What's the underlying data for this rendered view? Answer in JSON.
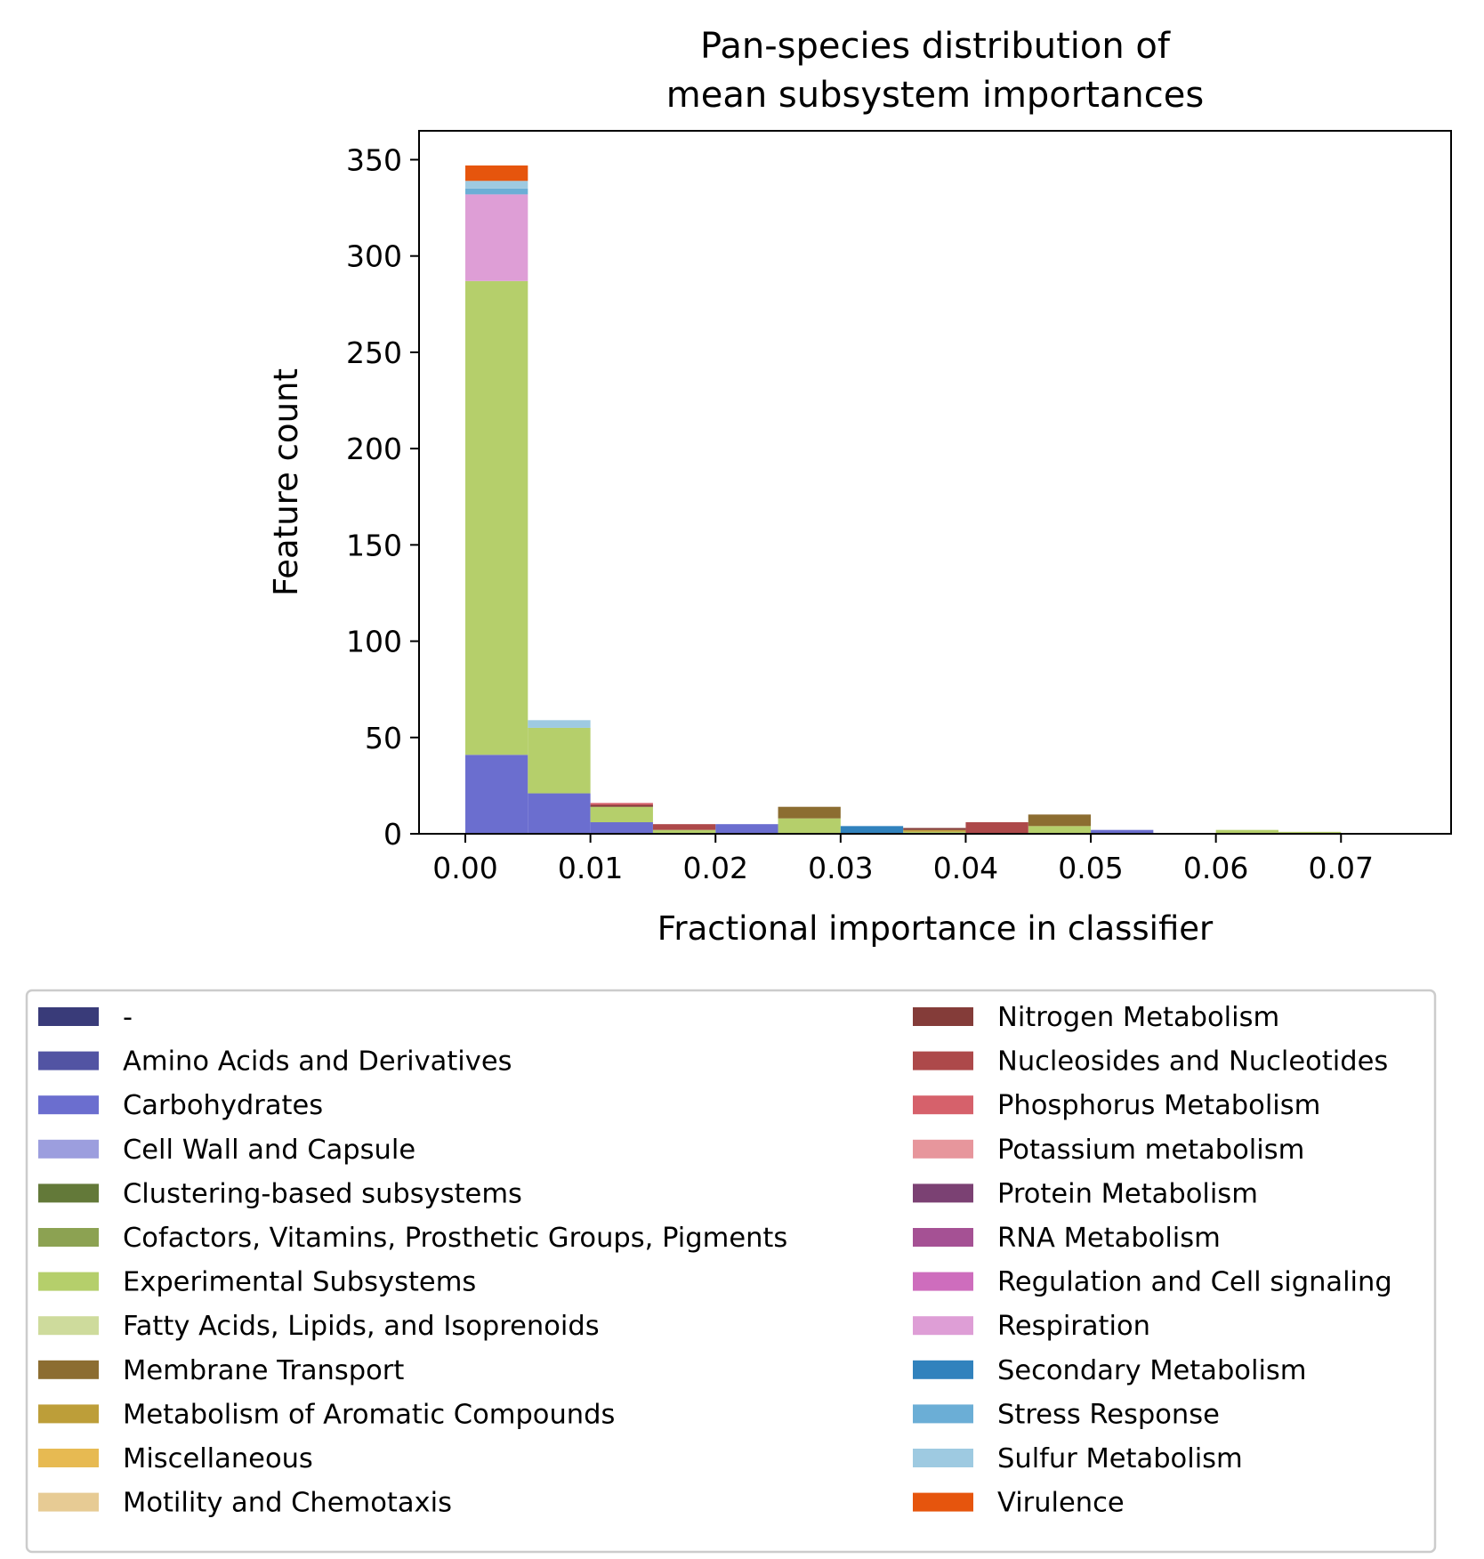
{
  "chart_data": {
    "type": "bar",
    "stacked": true,
    "histogram": true,
    "title_lines": [
      "Pan-species distribution of",
      "mean subsystem importances"
    ],
    "xlabel": "Fractional importance in classifier",
    "ylabel": "Feature count",
    "xlim": [
      -0.0037,
      0.0788
    ],
    "ylim": [
      0,
      365
    ],
    "xticks": [
      0.0,
      0.01,
      0.02,
      0.03,
      0.04,
      0.05,
      0.06,
      0.07
    ],
    "xtick_labels": [
      "0.00",
      "0.01",
      "0.02",
      "0.03",
      "0.04",
      "0.05",
      "0.06",
      "0.07"
    ],
    "yticks": [
      0,
      50,
      100,
      150,
      200,
      250,
      300,
      350
    ],
    "ytick_labels": [
      "0",
      "50",
      "100",
      "150",
      "200",
      "250",
      "300",
      "350"
    ],
    "bin_edges": [
      0.0,
      0.005,
      0.01,
      0.015,
      0.02,
      0.025,
      0.03,
      0.035,
      0.04,
      0.045,
      0.05,
      0.055,
      0.06,
      0.065,
      0.07
    ],
    "grid": false,
    "legend_position": "bottom",
    "series": [
      {
        "name": "-",
        "color": "#393b79",
        "values": [
          0,
          0,
          0,
          0,
          0,
          0,
          0,
          0,
          0,
          0,
          0,
          0,
          0,
          0
        ]
      },
      {
        "name": "Amino Acids and Derivatives",
        "color": "#5254a3",
        "values": [
          0,
          0,
          0,
          0,
          0,
          0,
          0,
          0,
          0,
          0,
          0,
          0,
          0,
          0
        ]
      },
      {
        "name": "Carbohydrates",
        "color": "#6b6ecf",
        "values": [
          41,
          21,
          6,
          0,
          5,
          0,
          0,
          0,
          0,
          0,
          2,
          0,
          0,
          0
        ]
      },
      {
        "name": "Cell Wall and Capsule",
        "color": "#9c9ede",
        "values": [
          0,
          0,
          0,
          0,
          0,
          0,
          0,
          0,
          0,
          0,
          0,
          0,
          0,
          0
        ]
      },
      {
        "name": "Clustering-based subsystems",
        "color": "#637939",
        "values": [
          0,
          0,
          0,
          0,
          0,
          0,
          0,
          0,
          0,
          0,
          0,
          0,
          0,
          0
        ]
      },
      {
        "name": "Cofactors, Vitamins, Prosthetic Groups, Pigments",
        "color": "#8ca252",
        "values": [
          0,
          0,
          0,
          0,
          0,
          0,
          0,
          0,
          0,
          0,
          0,
          0,
          0,
          0
        ]
      },
      {
        "name": "Experimental Subsystems",
        "color": "#b5cf6b",
        "values": [
          246,
          34,
          8,
          2,
          0,
          8,
          0,
          1,
          0,
          4,
          0,
          0,
          2,
          1
        ]
      },
      {
        "name": "Fatty Acids, Lipids, and Isoprenoids",
        "color": "#cedb9c",
        "values": [
          0,
          0,
          0,
          0,
          0,
          0,
          0,
          0,
          0,
          0,
          0,
          0,
          0,
          0
        ]
      },
      {
        "name": "Membrane Transport",
        "color": "#8c6d31",
        "values": [
          0,
          0,
          0,
          0,
          0,
          6,
          0,
          0,
          0,
          6,
          0,
          0,
          0,
          0
        ]
      },
      {
        "name": "Metabolism of Aromatic Compounds",
        "color": "#bd9e39",
        "values": [
          0,
          0,
          0,
          0,
          0,
          0,
          0,
          1,
          0,
          0,
          0,
          0,
          0,
          0
        ]
      },
      {
        "name": "Miscellaneous",
        "color": "#e7ba52",
        "values": [
          0,
          0,
          0,
          0,
          0,
          0,
          0,
          0,
          0,
          0,
          0,
          0,
          0,
          0
        ]
      },
      {
        "name": "Motility and Chemotaxis",
        "color": "#e7cb94",
        "values": [
          0,
          0,
          0,
          0,
          0,
          0,
          0,
          0,
          0,
          0,
          0,
          0,
          0,
          0
        ]
      },
      {
        "name": "Nitrogen Metabolism",
        "color": "#843c39",
        "values": [
          0,
          0,
          1,
          0,
          0,
          0,
          0,
          1,
          0,
          0,
          0,
          0,
          0,
          0
        ]
      },
      {
        "name": "Nucleosides and Nucleotides",
        "color": "#ad494a",
        "values": [
          0,
          0,
          0,
          3,
          0,
          0,
          0,
          0,
          6,
          0,
          0,
          0,
          0,
          0
        ]
      },
      {
        "name": "Phosphorus Metabolism",
        "color": "#d6616b",
        "values": [
          0,
          0,
          1,
          0,
          0,
          0,
          0,
          0,
          0,
          0,
          0,
          0,
          0,
          0
        ]
      },
      {
        "name": "Potassium metabolism",
        "color": "#e7969c",
        "values": [
          0,
          0,
          0,
          0,
          0,
          0,
          0,
          0,
          0,
          0,
          0,
          0,
          0,
          0
        ]
      },
      {
        "name": "Protein Metabolism",
        "color": "#7b4173",
        "values": [
          0,
          0,
          0,
          0,
          0,
          0,
          0,
          0,
          0,
          0,
          0,
          0,
          0,
          0
        ]
      },
      {
        "name": "RNA Metabolism",
        "color": "#a55194",
        "values": [
          0,
          0,
          0,
          0,
          0,
          0,
          0,
          0,
          0,
          0,
          0,
          0,
          0,
          0
        ]
      },
      {
        "name": "Regulation and Cell signaling",
        "color": "#ce6dbd",
        "values": [
          0,
          0,
          0,
          0,
          0,
          0,
          0,
          0,
          0,
          0,
          0,
          0,
          0,
          0
        ]
      },
      {
        "name": "Respiration",
        "color": "#de9ed6",
        "values": [
          45,
          0,
          0,
          0,
          0,
          0,
          0,
          0,
          0,
          0,
          0,
          0,
          0,
          0
        ]
      },
      {
        "name": "Secondary Metabolism",
        "color": "#3182bd",
        "values": [
          0,
          0,
          0,
          0,
          0,
          0,
          4,
          0,
          0,
          0,
          0,
          0,
          0,
          0
        ]
      },
      {
        "name": "Stress Response",
        "color": "#6baed6",
        "values": [
          3,
          0,
          0,
          0,
          0,
          0,
          0,
          0,
          0,
          0,
          0,
          0,
          0,
          0
        ]
      },
      {
        "name": "Sulfur Metabolism",
        "color": "#9ecae1",
        "values": [
          4,
          4,
          0,
          0,
          0,
          0,
          0,
          0,
          0,
          0,
          0,
          0,
          0,
          0
        ]
      },
      {
        "name": "Virulence",
        "color": "#e6550d",
        "values": [
          8,
          0,
          0,
          0,
          0,
          0,
          0,
          0,
          0,
          0,
          0,
          0,
          0,
          0
        ]
      }
    ]
  }
}
